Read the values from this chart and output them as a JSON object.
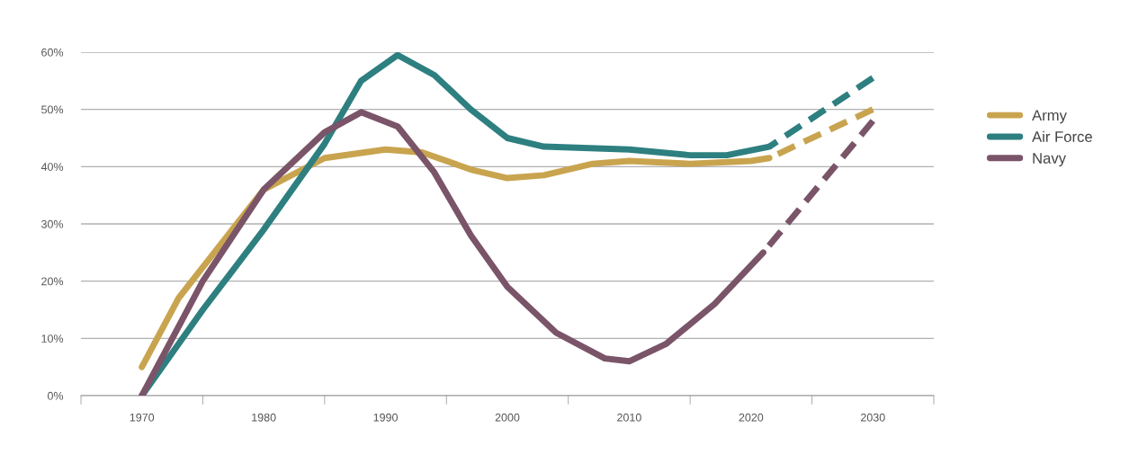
{
  "chart_data": {
    "type": "line",
    "xlim": [
      1965,
      2035
    ],
    "ylim": [
      0,
      60
    ],
    "xticks": [
      {
        "value": 1965,
        "label": null
      },
      {
        "value": 1970,
        "label": "1970"
      },
      {
        "value": 1975,
        "label": null
      },
      {
        "value": 1980,
        "label": "1980"
      },
      {
        "value": 1985,
        "label": null
      },
      {
        "value": 1990,
        "label": "1990"
      },
      {
        "value": 1995,
        "label": null
      },
      {
        "value": 2000,
        "label": "2000"
      },
      {
        "value": 2005,
        "label": null
      },
      {
        "value": 2010,
        "label": "2010"
      },
      {
        "value": 2015,
        "label": null
      },
      {
        "value": 2020,
        "label": "2020"
      },
      {
        "value": 2025,
        "label": null
      },
      {
        "value": 2030,
        "label": "2030"
      },
      {
        "value": 2035,
        "label": null
      }
    ],
    "yticks": [
      {
        "value": 0,
        "label": "0%"
      },
      {
        "value": 10,
        "label": "10%"
      },
      {
        "value": 20,
        "label": "20%"
      },
      {
        "value": 30,
        "label": "30%"
      },
      {
        "value": 40,
        "label": "40%"
      },
      {
        "value": 50,
        "label": "50%"
      },
      {
        "value": 60,
        "label": "60%"
      }
    ],
    "grid": "y",
    "legend": "right",
    "marker": "none",
    "series": [
      {
        "name": "Army",
        "color": "#c9a44f",
        "line_style": "solid",
        "x": [
          1970,
          1973,
          1980,
          1985,
          1990,
          1993,
          1997,
          2000,
          2003,
          2007,
          2010,
          2015,
          2020,
          2021.5
        ],
        "values": [
          5,
          17,
          36,
          41.5,
          43,
          42.5,
          39.5,
          38,
          38.5,
          40.5,
          41,
          40.5,
          41,
          41.5
        ]
      },
      {
        "name": "Air Force",
        "color": "#2e7f80",
        "line_style": "solid",
        "x": [
          1970,
          1975,
          1980,
          1985,
          1988,
          1991,
          1994,
          1997,
          2000,
          2003,
          2010,
          2015,
          2018,
          2021.5
        ],
        "values": [
          0,
          15,
          29,
          44,
          55,
          59.5,
          56,
          50,
          45,
          43.5,
          43,
          42,
          42,
          43.5
        ]
      },
      {
        "name": "Navy",
        "color": "#7a5468",
        "line_style": "solid",
        "x": [
          1970,
          1975,
          1980,
          1985,
          1988,
          1991,
          1994,
          1997,
          2000,
          2004,
          2008,
          2010,
          2013,
          2017,
          2021
        ],
        "values": [
          0,
          20,
          36,
          46,
          49.5,
          47,
          39,
          28,
          19,
          11,
          6.5,
          6,
          9,
          16,
          25
        ]
      },
      {
        "color": "#c9a44f",
        "line_style": "dashed",
        "x": [
          2021.5,
          2030
        ],
        "values": [
          41.5,
          50
        ]
      },
      {
        "color": "#2e7f80",
        "line_style": "dashed",
        "x": [
          2021.5,
          2030
        ],
        "values": [
          43.5,
          55.5
        ]
      },
      {
        "color": "#7a5468",
        "line_style": "dashed",
        "x": [
          2021,
          2030
        ],
        "values": [
          25,
          48
        ]
      }
    ]
  }
}
